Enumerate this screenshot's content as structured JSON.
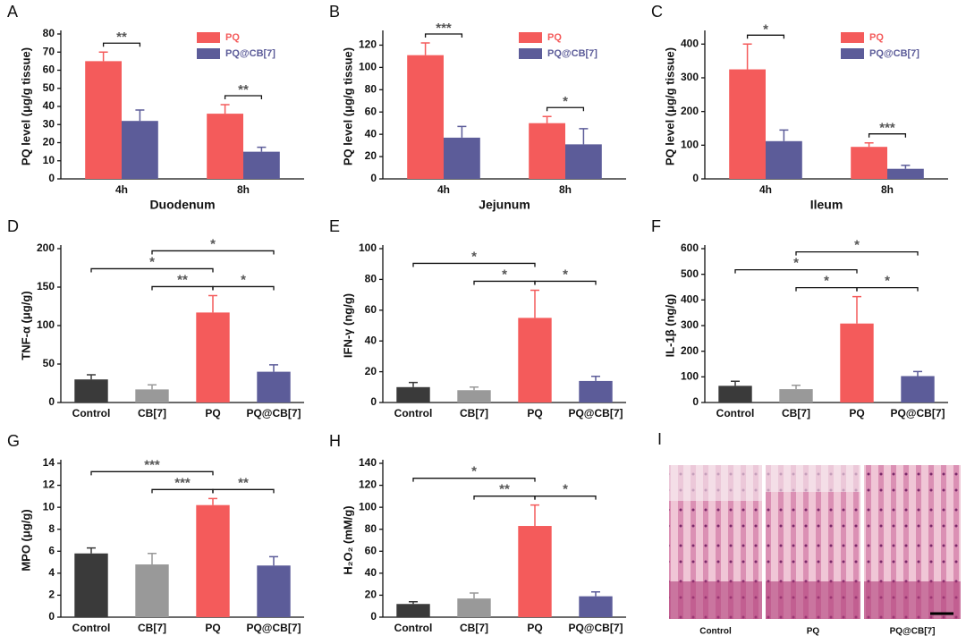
{
  "chart_data": [
    {
      "type": "grouped-bar",
      "panel": "A",
      "xlabel": "Duodenum",
      "ylabel": "PQ level (μg/g tissue)",
      "categories": [
        "4h",
        "8h"
      ],
      "series": [
        {
          "name": "PQ",
          "color": "#f45b5b",
          "values": [
            65,
            36
          ],
          "errors": [
            5,
            5
          ]
        },
        {
          "name": "PQ@CB[7]",
          "color": "#5c5c99",
          "values": [
            32,
            15
          ],
          "errors": [
            6,
            2.5
          ]
        }
      ],
      "significance": [
        "**",
        "**"
      ],
      "ylim": [
        0,
        80
      ],
      "yticks": [
        0,
        10,
        20,
        30,
        40,
        50,
        60,
        70,
        80
      ],
      "legend": "upper right"
    },
    {
      "type": "grouped-bar",
      "panel": "B",
      "xlabel": "Jejunum",
      "ylabel": "PQ level (μg/g tissue)",
      "categories": [
        "4h",
        "8h"
      ],
      "series": [
        {
          "name": "PQ",
          "color": "#f45b5b",
          "values": [
            111,
            50
          ],
          "errors": [
            11,
            6
          ]
        },
        {
          "name": "PQ@CB[7]",
          "color": "#5c5c99",
          "values": [
            37,
            31
          ],
          "errors": [
            10,
            14
          ]
        }
      ],
      "significance": [
        "***",
        "*"
      ],
      "ylim": [
        0,
        130
      ],
      "yticks": [
        0,
        20,
        40,
        60,
        80,
        100,
        120
      ],
      "legend": "upper right"
    },
    {
      "type": "grouped-bar",
      "panel": "C",
      "xlabel": "Ileum",
      "ylabel": "PQ level (μg/g tissue)",
      "categories": [
        "4h",
        "8h"
      ],
      "series": [
        {
          "name": "PQ",
          "color": "#f45b5b",
          "values": [
            325,
            95
          ],
          "errors": [
            75,
            12
          ]
        },
        {
          "name": "PQ@CB[7]",
          "color": "#5c5c99",
          "values": [
            112,
            30
          ],
          "errors": [
            33,
            10
          ]
        }
      ],
      "significance": [
        "*",
        "***"
      ],
      "ylim": [
        0,
        430
      ],
      "yticks": [
        0,
        100,
        200,
        300,
        400
      ],
      "legend": "upper right"
    },
    {
      "type": "bar",
      "panel": "D",
      "ylabel": "TNF-α (μg/g)",
      "categories": [
        "Control",
        "CB[7]",
        "PQ",
        "PQ@CB[7]"
      ],
      "values": [
        30,
        17,
        117,
        40
      ],
      "errors": [
        6,
        6,
        22,
        9
      ],
      "colors": [
        "#3a3a3a",
        "#999999",
        "#f45b5b",
        "#5c5c99"
      ],
      "brackets": [
        {
          "between": [
            "CB[7]",
            "PQ"
          ],
          "label": "**"
        },
        {
          "between": [
            "PQ",
            "PQ@CB[7]"
          ],
          "label": "*"
        },
        {
          "between": [
            "Control",
            "PQ"
          ],
          "label": "*"
        },
        {
          "between": [
            "CB[7]",
            "PQ@CB[7]"
          ],
          "label": "*"
        }
      ],
      "ylim": [
        0,
        200
      ],
      "yticks": [
        0,
        50,
        100,
        150,
        200
      ]
    },
    {
      "type": "bar",
      "panel": "E",
      "ylabel": "IFN-γ (ng/g)",
      "categories": [
        "Control",
        "CB[7]",
        "PQ",
        "PQ@CB[7]"
      ],
      "values": [
        10,
        8,
        55,
        14
      ],
      "errors": [
        3,
        2,
        18,
        3
      ],
      "colors": [
        "#3a3a3a",
        "#999999",
        "#f45b5b",
        "#5c5c99"
      ],
      "brackets": [
        {
          "between": [
            "CB[7]",
            "PQ"
          ],
          "label": "*"
        },
        {
          "between": [
            "PQ",
            "PQ@CB[7]"
          ],
          "label": "*"
        },
        {
          "between": [
            "Control",
            "PQ"
          ],
          "label": "*"
        }
      ],
      "ylim": [
        0,
        100
      ],
      "yticks": [
        0,
        20,
        40,
        60,
        80,
        100
      ]
    },
    {
      "type": "bar",
      "panel": "F",
      "ylabel": "IL-1β (ng/g)",
      "categories": [
        "Control",
        "CB[7]",
        "PQ",
        "PQ@CB[7]"
      ],
      "values": [
        65,
        52,
        308,
        103
      ],
      "errors": [
        18,
        15,
        105,
        18
      ],
      "colors": [
        "#3a3a3a",
        "#999999",
        "#f45b5b",
        "#5c5c99"
      ],
      "brackets": [
        {
          "between": [
            "CB[7]",
            "PQ"
          ],
          "label": "*"
        },
        {
          "between": [
            "PQ",
            "PQ@CB[7]"
          ],
          "label": "*"
        },
        {
          "between": [
            "Control",
            "PQ"
          ],
          "label": "*"
        },
        {
          "between": [
            "CB[7]",
            "PQ@CB[7]"
          ],
          "label": "*"
        }
      ],
      "ylim": [
        0,
        600
      ],
      "yticks": [
        0,
        100,
        200,
        300,
        400,
        500,
        600
      ]
    },
    {
      "type": "bar",
      "panel": "G",
      "ylabel": "MPO (μg/g)",
      "categories": [
        "Control",
        "CB[7]",
        "PQ",
        "PQ@CB[7]"
      ],
      "values": [
        5.8,
        4.8,
        10.2,
        4.7
      ],
      "errors": [
        0.5,
        1.0,
        0.6,
        0.8
      ],
      "colors": [
        "#3a3a3a",
        "#999999",
        "#f45b5b",
        "#5c5c99"
      ],
      "brackets": [
        {
          "between": [
            "CB[7]",
            "PQ"
          ],
          "label": "***"
        },
        {
          "between": [
            "PQ",
            "PQ@CB[7]"
          ],
          "label": "**"
        },
        {
          "between": [
            "Control",
            "PQ"
          ],
          "label": "***"
        }
      ],
      "ylim": [
        0,
        14
      ],
      "yticks": [
        0,
        2,
        4,
        6,
        8,
        10,
        12,
        14
      ]
    },
    {
      "type": "bar",
      "panel": "H",
      "ylabel": "H₂O₂ (mM/g)",
      "categories": [
        "Control",
        "CB[7]",
        "PQ",
        "PQ@CB[7]"
      ],
      "values": [
        12,
        17,
        83,
        19
      ],
      "errors": [
        2,
        5,
        19,
        4
      ],
      "colors": [
        "#3a3a3a",
        "#999999",
        "#f45b5b",
        "#5c5c99"
      ],
      "brackets": [
        {
          "between": [
            "CB[7]",
            "PQ"
          ],
          "label": "**"
        },
        {
          "between": [
            "PQ",
            "PQ@CB[7]"
          ],
          "label": "*"
        },
        {
          "between": [
            "Control",
            "PQ"
          ],
          "label": "*"
        }
      ],
      "ylim": [
        0,
        140
      ],
      "yticks": [
        0,
        20,
        40,
        60,
        80,
        100,
        120,
        140
      ]
    }
  ],
  "histology": {
    "panel": "I",
    "labels": [
      "Control",
      "PQ",
      "PQ@CB[7]"
    ]
  }
}
